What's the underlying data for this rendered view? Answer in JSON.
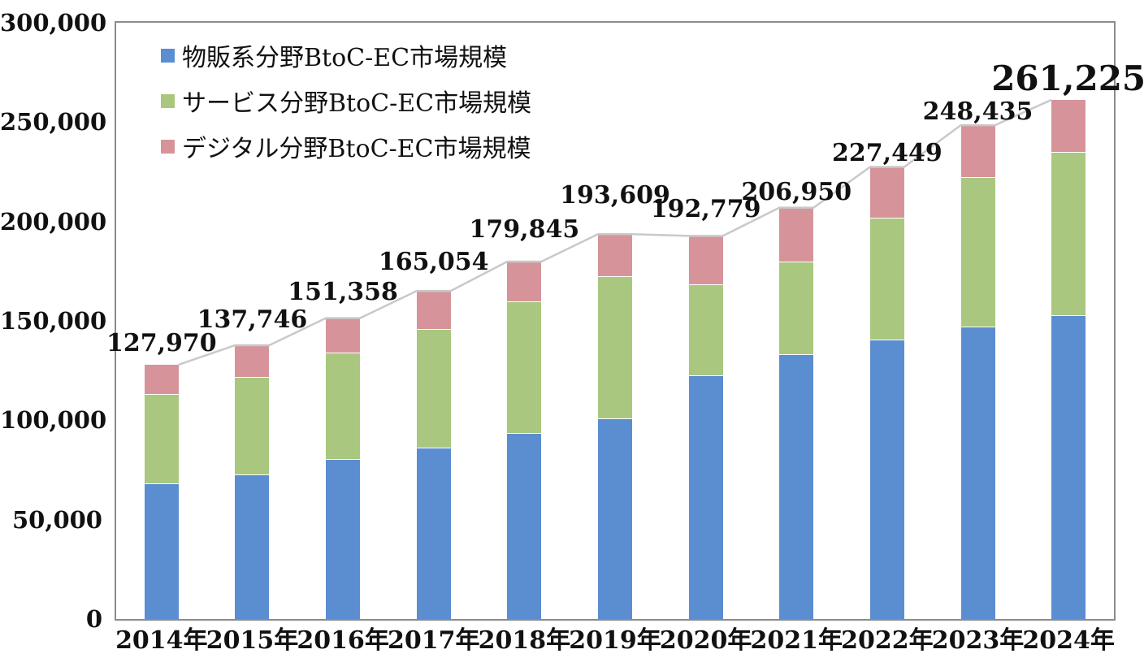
{
  "chart_data": {
    "type": "bar",
    "stacked": true,
    "categories": [
      "2014年",
      "2015年",
      "2016年",
      "2017年",
      "2018年",
      "2019年",
      "2020年",
      "2021年",
      "2022年",
      "2023年",
      "2024年"
    ],
    "series": [
      {
        "name": "物販系分野BtoC-EC市場規模",
        "color": "#5B8DD1",
        "values": [
          68043,
          72398,
          80043,
          86008,
          92992,
          100515,
          122333,
          132865,
          139997,
          146760,
          152254
        ]
      },
      {
        "name": "サービス分野BtoC-EC市場規模",
        "color": "#A9C77E",
        "values": [
          44816,
          49014,
          53532,
          59568,
          66471,
          71672,
          45832,
          46424,
          61477,
          75169,
          82427
        ]
      },
      {
        "name": "デジタル分野BtoC-EC市場規模",
        "color": "#D6949A",
        "values": [
          15111,
          16334,
          17782,
          19478,
          20382,
          21422,
          24614,
          27661,
          25974,
          26506,
          26544
        ]
      }
    ],
    "totals": [
      127970,
      137746,
      151358,
      165054,
      179845,
      193609,
      192779,
      206950,
      227449,
      248435,
      261225
    ],
    "total_labels": [
      "127,970",
      "137,746",
      "151,358",
      "165,054",
      "179,845",
      "193,609",
      "192,779",
      "206,950",
      "227,449",
      "248,435",
      "261,225"
    ],
    "total_line_color": "#C9C9C9",
    "y_axis": {
      "min": 0,
      "max": 300000,
      "tick_step": 50000,
      "tick_labels": [
        "0",
        "50,000",
        "100,000",
        "150,000",
        "200,000",
        "250,000",
        "300,000"
      ]
    },
    "xlabel": "",
    "ylabel": "",
    "title": "",
    "grid": false,
    "legend_position": "top-left-inside",
    "plot_border_color": "#8C8C8C",
    "background_color": "#FFFFFF"
  }
}
